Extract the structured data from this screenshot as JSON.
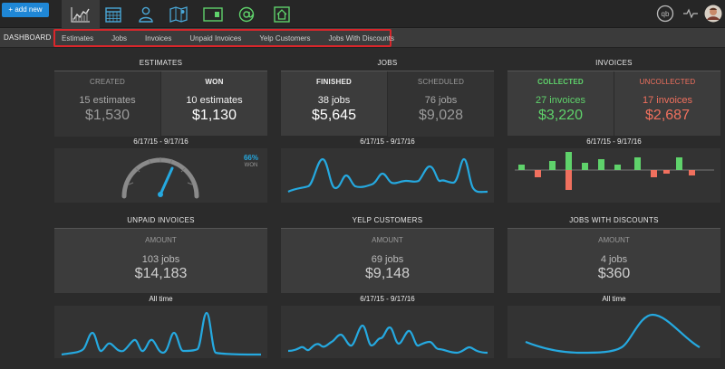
{
  "toolbar": {
    "add_new": "+ add new"
  },
  "nav_icons": [
    "chart-icon",
    "calendar-icon",
    "user-icon",
    "map-icon",
    "money-icon",
    "at-icon",
    "home-icon"
  ],
  "right_icons": [
    "qb-icon",
    "activity-icon",
    "avatar"
  ],
  "subnav": {
    "dashboard": "DASHBOARD",
    "tabs": [
      "Estimates",
      "Jobs",
      "Invoices",
      "Unpaid Invoices",
      "Yelp Customers",
      "Jobs With Discounts"
    ]
  },
  "estimates": {
    "title": "ESTIMATES",
    "created": {
      "label": "CREATED",
      "count": "15 estimates",
      "amount": "$1,530"
    },
    "won": {
      "label": "WON",
      "count": "10 estimates",
      "amount": "$1,130"
    },
    "date_range": "6/17/15 - 9/17/16",
    "gauge": {
      "percent_label": "66%",
      "status": "WON",
      "value": 0.66
    }
  },
  "jobs": {
    "title": "JOBS",
    "finished": {
      "label": "FINISHED",
      "count": "38 jobs",
      "amount": "$5,645"
    },
    "scheduled": {
      "label": "SCHEDULED",
      "count": "76 jobs",
      "amount": "$9,028"
    },
    "date_range": "6/17/15 - 9/17/16"
  },
  "invoices": {
    "title": "INVOICES",
    "collected": {
      "label": "COLLECTED",
      "count": "27 invoices",
      "amount": "$3,220"
    },
    "uncollected": {
      "label": "UNCOLLECTED",
      "count": "17 invoices",
      "amount": "$2,687"
    },
    "date_range": "6/17/15 - 9/17/16"
  },
  "unpaid": {
    "title": "UNPAID INVOICES",
    "label": "AMOUNT",
    "count": "103 jobs",
    "amount": "$14,183",
    "date_range": "All time"
  },
  "yelp": {
    "title": "YELP CUSTOMERS",
    "label": "AMOUNT",
    "count": "69 jobs",
    "amount": "$9,148",
    "date_range": "6/17/15 - 9/17/16"
  },
  "discounts": {
    "title": "JOBS WITH DISCOUNTS",
    "label": "AMOUNT",
    "count": "4 jobs",
    "amount": "$360",
    "date_range": "All time"
  },
  "colors": {
    "accent": "#25a9e0",
    "button": "#1f87d6",
    "green": "#5fd26b",
    "red": "#f0705e",
    "highlight": "#d9262b"
  }
}
